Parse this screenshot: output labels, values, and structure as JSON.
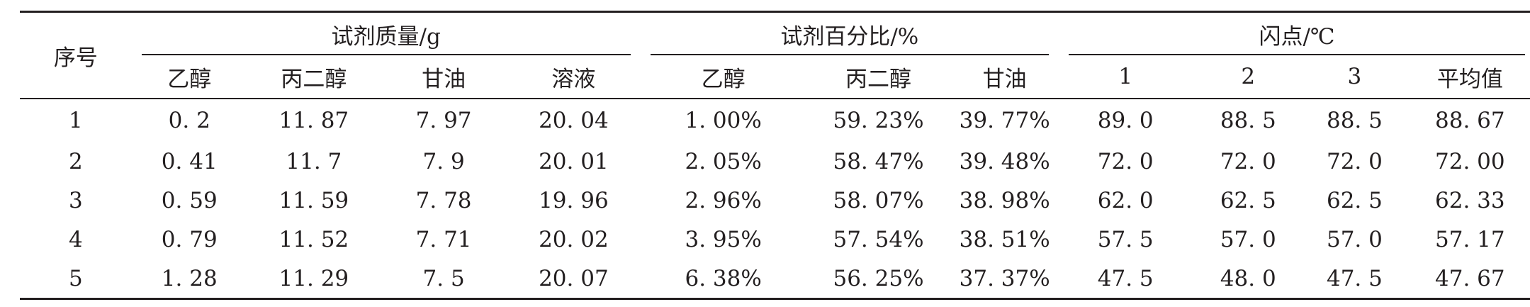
{
  "table": {
    "header_top": {
      "seq": "序号",
      "mass": "试剂质量/g",
      "percent": "试剂百分比/%",
      "flash": "闪点/℃"
    },
    "header_sub": [
      "乙醇",
      "丙二醇",
      "甘油",
      "溶液",
      "乙醇",
      "丙二醇",
      "甘油",
      "1",
      "2",
      "3",
      "平均值"
    ],
    "rows": [
      [
        "1",
        "0. 2",
        "11. 87",
        "7. 97",
        "20. 04",
        "1. 00%",
        "59. 23%",
        "39. 77%",
        "89. 0",
        "88. 5",
        "88. 5",
        "88. 67"
      ],
      [
        "2",
        "0. 41",
        "11. 7",
        "7. 9",
        "20. 01",
        "2. 05%",
        "58. 47%",
        "39. 48%",
        "72. 0",
        "72. 0",
        "72. 0",
        "72. 00"
      ],
      [
        "3",
        "0. 59",
        "11. 59",
        "7. 78",
        "19. 96",
        "2. 96%",
        "58. 07%",
        "38. 98%",
        "62. 0",
        "62. 5",
        "62. 5",
        "62. 33"
      ],
      [
        "4",
        "0. 79",
        "11. 52",
        "7. 71",
        "20. 02",
        "3. 95%",
        "57. 54%",
        "38. 51%",
        "57. 5",
        "57. 0",
        "57. 0",
        "57. 17"
      ],
      [
        "5",
        "1. 28",
        "11. 29",
        "7. 5",
        "20. 07",
        "6. 38%",
        "56. 25%",
        "37. 37%",
        "47. 5",
        "48. 0",
        "47. 5",
        "47. 67"
      ]
    ]
  }
}
